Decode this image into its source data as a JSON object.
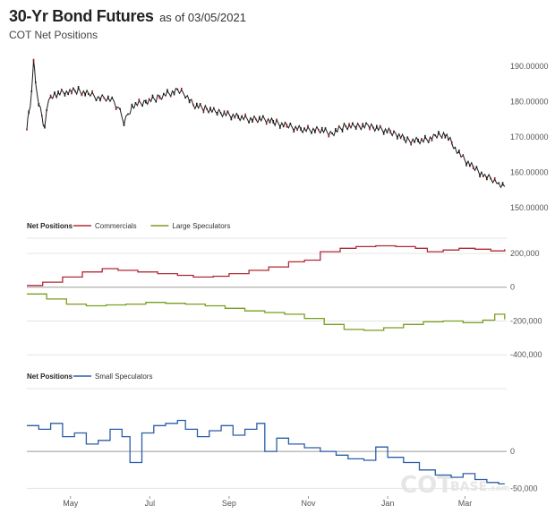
{
  "header": {
    "title": "30-Yr Bond Futures",
    "as_of": "as of 03/05/2021",
    "subtitle": "COT Net Positions"
  },
  "watermark": {
    "brand": "COT",
    "suffix": "BASE",
    "tld": ".com"
  },
  "chart_data": [
    {
      "type": "line",
      "name": "price",
      "ylim": [
        148,
        193
      ],
      "y_ticks": [
        "190.00000",
        "180.00000",
        "170.00000",
        "160.00000",
        "150.00000"
      ],
      "y_tick_values": [
        190,
        180,
        170,
        160,
        150
      ],
      "x_range": [
        0,
        12.1
      ],
      "points": [
        [
          0.0,
          173
        ],
        [
          0.05,
          177
        ],
        [
          0.12,
          182
        ],
        [
          0.17,
          192
        ],
        [
          0.22,
          185
        ],
        [
          0.3,
          180
        ],
        [
          0.38,
          176
        ],
        [
          0.45,
          172
        ],
        [
          0.5,
          178
        ],
        [
          0.6,
          181
        ],
        [
          0.75,
          182
        ],
        [
          1.0,
          183
        ],
        [
          1.3,
          183
        ],
        [
          1.6,
          182
        ],
        [
          1.8,
          181
        ],
        [
          2.0,
          181
        ],
        [
          2.2,
          180
        ],
        [
          2.35,
          177
        ],
        [
          2.45,
          174
        ],
        [
          2.55,
          176
        ],
        [
          2.7,
          179
        ],
        [
          3.0,
          180
        ],
        [
          3.3,
          181
        ],
        [
          3.5,
          182
        ],
        [
          3.8,
          183
        ],
        [
          4.0,
          182
        ],
        [
          4.2,
          179
        ],
        [
          4.5,
          178
        ],
        [
          4.8,
          177
        ],
        [
          5.2,
          176
        ],
        [
          5.6,
          175
        ],
        [
          6.0,
          175
        ],
        [
          6.3,
          174
        ],
        [
          6.6,
          173
        ],
        [
          7.0,
          172
        ],
        [
          7.4,
          172
        ],
        [
          7.7,
          171
        ],
        [
          8.0,
          173
        ],
        [
          8.3,
          173
        ],
        [
          8.6,
          173
        ],
        [
          9.0,
          172
        ],
        [
          9.3,
          171
        ],
        [
          9.6,
          169
        ],
        [
          10.0,
          169
        ],
        [
          10.3,
          170
        ],
        [
          10.55,
          171
        ],
        [
          10.8,
          167
        ],
        [
          11.0,
          164
        ],
        [
          11.3,
          161
        ],
        [
          11.55,
          159
        ],
        [
          11.75,
          158
        ],
        [
          11.9,
          157
        ],
        [
          12.05,
          156
        ]
      ]
    },
    {
      "type": "line",
      "legend_title": "Net Positions",
      "ylim": [
        -420000,
        290000
      ],
      "y_ticks": [
        "200,000",
        "0",
        "-200,000",
        "-400,000"
      ],
      "y_tick_values": [
        200000,
        0,
        -200000,
        -400000
      ],
      "x_range": [
        0,
        12.1
      ],
      "series": [
        {
          "name": "Commercials",
          "color": "#b02a37",
          "values": [
            [
              0.0,
              10000
            ],
            [
              0.4,
              30000
            ],
            [
              0.9,
              60000
            ],
            [
              1.4,
              90000
            ],
            [
              1.9,
              110000
            ],
            [
              2.3,
              100000
            ],
            [
              2.8,
              90000
            ],
            [
              3.3,
              80000
            ],
            [
              3.8,
              70000
            ],
            [
              4.2,
              60000
            ],
            [
              4.7,
              65000
            ],
            [
              5.1,
              80000
            ],
            [
              5.6,
              100000
            ],
            [
              6.1,
              120000
            ],
            [
              6.6,
              150000
            ],
            [
              7.0,
              160000
            ],
            [
              7.4,
              210000
            ],
            [
              7.9,
              230000
            ],
            [
              8.3,
              240000
            ],
            [
              8.8,
              245000
            ],
            [
              9.3,
              240000
            ],
            [
              9.8,
              230000
            ],
            [
              10.1,
              210000
            ],
            [
              10.5,
              220000
            ],
            [
              10.9,
              230000
            ],
            [
              11.3,
              225000
            ],
            [
              11.7,
              215000
            ],
            [
              12.05,
              225000
            ]
          ]
        },
        {
          "name": "Large Speculators",
          "color": "#7a9e1f",
          "values": [
            [
              0.0,
              -40000
            ],
            [
              0.5,
              -70000
            ],
            [
              1.0,
              -100000
            ],
            [
              1.5,
              -110000
            ],
            [
              2.0,
              -105000
            ],
            [
              2.5,
              -100000
            ],
            [
              3.0,
              -90000
            ],
            [
              3.5,
              -95000
            ],
            [
              4.0,
              -100000
            ],
            [
              4.5,
              -110000
            ],
            [
              5.0,
              -125000
            ],
            [
              5.5,
              -140000
            ],
            [
              6.0,
              -150000
            ],
            [
              6.5,
              -160000
            ],
            [
              7.0,
              -185000
            ],
            [
              7.5,
              -220000
            ],
            [
              8.0,
              -250000
            ],
            [
              8.5,
              -255000
            ],
            [
              9.0,
              -240000
            ],
            [
              9.5,
              -220000
            ],
            [
              10.0,
              -205000
            ],
            [
              10.5,
              -200000
            ],
            [
              11.0,
              -210000
            ],
            [
              11.5,
              -195000
            ],
            [
              11.8,
              -160000
            ],
            [
              12.05,
              -190000
            ]
          ]
        }
      ]
    },
    {
      "type": "line",
      "legend_title": "Net Positions",
      "ylim": [
        -58000,
        85000
      ],
      "y_ticks": [
        "0",
        "-50,000"
      ],
      "y_tick_values": [
        0,
        -50000
      ],
      "x_range": [
        0,
        12.1
      ],
      "x_ticks": [
        "May",
        "Jul",
        "Sep",
        "Nov",
        "Jan",
        "Mar"
      ],
      "x_tick_values": [
        1.1,
        3.1,
        5.1,
        7.1,
        9.1,
        11.05
      ],
      "series": [
        {
          "name": "Small Speculators",
          "color": "#2a5ea8",
          "values": [
            [
              0.0,
              35000
            ],
            [
              0.3,
              30000
            ],
            [
              0.6,
              38000
            ],
            [
              0.9,
              20000
            ],
            [
              1.2,
              25000
            ],
            [
              1.5,
              10000
            ],
            [
              1.8,
              15000
            ],
            [
              2.1,
              30000
            ],
            [
              2.4,
              20000
            ],
            [
              2.6,
              -15000
            ],
            [
              2.9,
              25000
            ],
            [
              3.2,
              35000
            ],
            [
              3.5,
              38000
            ],
            [
              3.8,
              42000
            ],
            [
              4.0,
              30000
            ],
            [
              4.3,
              20000
            ],
            [
              4.6,
              28000
            ],
            [
              4.9,
              35000
            ],
            [
              5.2,
              22000
            ],
            [
              5.5,
              30000
            ],
            [
              5.8,
              38000
            ],
            [
              6.0,
              0
            ],
            [
              6.3,
              18000
            ],
            [
              6.6,
              10000
            ],
            [
              7.0,
              5000
            ],
            [
              7.4,
              0
            ],
            [
              7.8,
              -5000
            ],
            [
              8.1,
              -10000
            ],
            [
              8.5,
              -12000
            ],
            [
              8.8,
              6000
            ],
            [
              9.1,
              -8000
            ],
            [
              9.5,
              -15000
            ],
            [
              9.9,
              -25000
            ],
            [
              10.3,
              -32000
            ],
            [
              10.7,
              -35000
            ],
            [
              11.0,
              -30000
            ],
            [
              11.3,
              -38000
            ],
            [
              11.6,
              -42000
            ],
            [
              11.9,
              -44000
            ],
            [
              12.05,
              -44000
            ]
          ]
        }
      ]
    }
  ]
}
